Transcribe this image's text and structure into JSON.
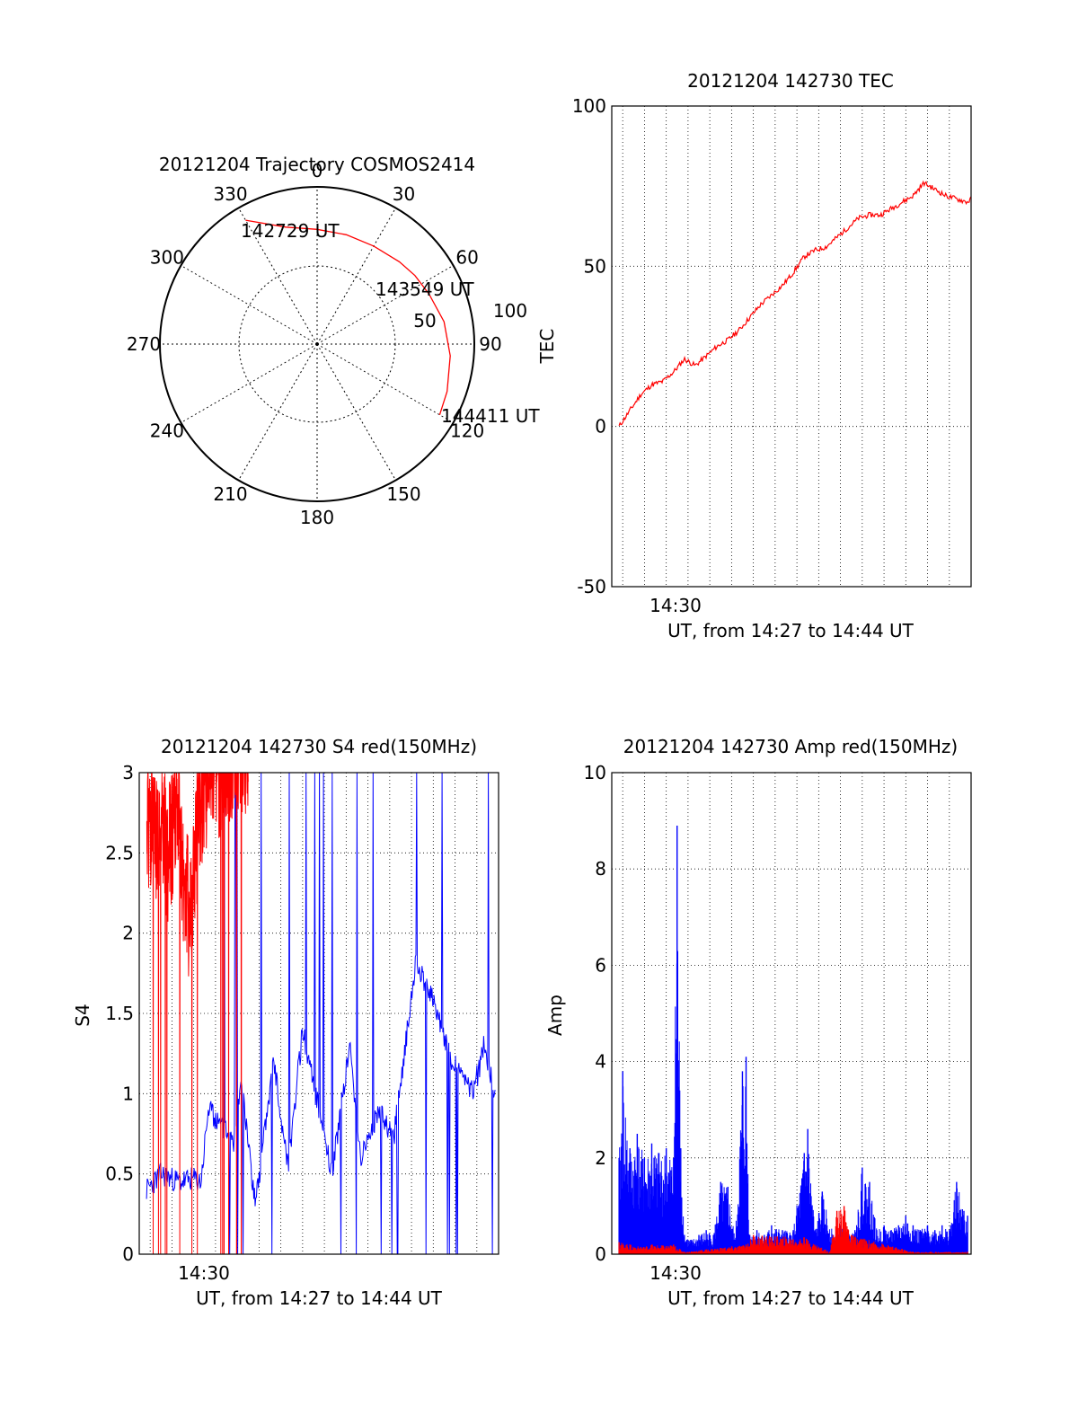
{
  "colors": {
    "red": "#ff0000",
    "blue": "#0000ff",
    "black": "#000000"
  },
  "chart_data": [
    {
      "id": "trajectory",
      "type": "polar",
      "title": "20121204 Trajectory COSMOS2414",
      "azimuth_labels": [
        "0",
        "30",
        "60",
        "90",
        "120",
        "150",
        "180",
        "210",
        "240",
        "270",
        "300",
        "330"
      ],
      "radial_labels": [
        "50",
        "100"
      ],
      "radial_range": [
        0,
        100
      ],
      "grid": true,
      "trajectory": [
        {
          "az": 330,
          "elev_dist": 91
        },
        {
          "az": 345,
          "elev_dist": 77
        },
        {
          "az": 0,
          "elev_dist": 73
        },
        {
          "az": 15,
          "elev_dist": 72
        },
        {
          "az": 30,
          "elev_dist": 72
        },
        {
          "az": 45,
          "elev_dist": 74
        },
        {
          "az": 55,
          "elev_dist": 76
        },
        {
          "az": 66,
          "elev_dist": 78
        },
        {
          "az": 80,
          "elev_dist": 82
        },
        {
          "az": 95,
          "elev_dist": 85
        },
        {
          "az": 110,
          "elev_dist": 88
        },
        {
          "az": 120,
          "elev_dist": 90
        }
      ],
      "annotations": [
        {
          "text": "142729 UT",
          "az": 330,
          "elev_dist": 91
        },
        {
          "text": "143549 UT",
          "az": 60,
          "elev_dist": 76
        },
        {
          "text": "144411 UT",
          "az": 120,
          "elev_dist": 90
        }
      ]
    },
    {
      "id": "tec",
      "type": "line",
      "title": "20121204 142730 TEC",
      "xlabel": "UT, from 14:27 to 14:44 UT",
      "ylabel": "TEC",
      "xlim": [
        14.4583,
        14.7333
      ],
      "ylim": [
        -50,
        100
      ],
      "yticks": [
        -50,
        0,
        50,
        100
      ],
      "xtick_label": "14:30",
      "grid": true,
      "series": [
        {
          "color": "red",
          "x": [
            14.4639,
            14.4722,
            14.4806,
            14.4889,
            14.4972,
            14.5056,
            14.5139,
            14.5222,
            14.5306,
            14.5389,
            14.5472,
            14.5556,
            14.5639,
            14.5722,
            14.5806,
            14.5889,
            14.5972,
            14.6056,
            14.6139,
            14.6222,
            14.6306,
            14.6389,
            14.6472,
            14.6556,
            14.6639,
            14.6722,
            14.6806,
            14.6889,
            14.6972,
            14.7056,
            14.7139,
            14.7222,
            14.7306,
            14.7333
          ],
          "values": [
            0,
            5,
            10,
            13,
            14,
            17,
            21,
            19,
            22,
            25,
            27,
            30,
            34,
            38,
            41,
            44,
            48,
            53,
            55,
            56,
            59,
            62,
            65,
            66,
            66,
            68,
            70,
            72,
            76,
            74,
            72,
            71,
            70,
            71
          ]
        }
      ]
    },
    {
      "id": "s4",
      "type": "line",
      "title": "20121204 142730 S4 red(150MHz)",
      "xlabel": "UT, from 14:27 to 14:44 UT",
      "ylabel": "S4",
      "xlim": [
        14.4583,
        14.7333
      ],
      "ylim": [
        0,
        3
      ],
      "yticks": [
        0,
        0.5,
        1,
        1.5,
        2,
        2.5,
        3
      ],
      "ytick_labels": [
        "0",
        "0.5",
        "1",
        "1.5",
        "2",
        "2.5",
        "3"
      ],
      "xtick_label": "14:30",
      "grid": true,
      "series": [
        {
          "color": "blue",
          "x": [
            14.4639,
            14.475,
            14.4889,
            14.5,
            14.5056,
            14.5111,
            14.5306,
            14.5361,
            14.5472,
            14.5611,
            14.5722,
            14.5833,
            14.6056,
            14.6194,
            14.6278,
            14.6417,
            14.6528,
            14.6694,
            14.6833,
            14.6972,
            14.7056,
            14.7139,
            14.7222,
            14.7306
          ],
          "values": [
            0.4,
            0.5,
            0.45,
            0.47,
            0.45,
            0.9,
            0.7,
            1.1,
            0.3,
            1.2,
            0.55,
            1.4,
            0.5,
            1.3,
            0.6,
            0.9,
            0.7,
            1.8,
            1.6,
            1.2,
            1.1,
            1.0,
            1.3,
            1.0
          ]
        },
        {
          "color": "red",
          "x": [
            14.4639,
            14.4694,
            14.475,
            14.4806,
            14.4861,
            14.4917,
            14.4972,
            14.5028,
            14.5083,
            14.5139,
            14.5194,
            14.525,
            14.5306,
            14.5361,
            14.5417
          ],
          "values": [
            2.6,
            2.4,
            2.5,
            2.3,
            2.6,
            2.2,
            1.9,
            2.5,
            2.7,
            3.0,
            2.8,
            3.0,
            2.9,
            3.0,
            3.0
          ]
        }
      ]
    },
    {
      "id": "amp",
      "type": "line",
      "title": "20121204 142730 Amp red(150MHz)",
      "xlabel": "UT, from 14:27 to 14:44 UT",
      "ylabel": "Amp",
      "xlim": [
        14.4583,
        14.7333
      ],
      "ylim": [
        0,
        10
      ],
      "yticks": [
        0,
        2,
        4,
        6,
        8,
        10
      ],
      "xtick_label": "14:30",
      "grid": true,
      "series": [
        {
          "color": "blue",
          "x": [
            14.4639,
            14.4667,
            14.4722,
            14.4778,
            14.4833,
            14.4889,
            14.4944,
            14.5,
            14.5056,
            14.5083,
            14.5111,
            14.5139,
            14.5194,
            14.525,
            14.5306,
            14.5361,
            14.5417,
            14.5472,
            14.5528,
            14.5583,
            14.5611,
            14.5639,
            14.5694,
            14.575,
            14.5806,
            14.5889,
            14.5972,
            14.6056,
            14.6083,
            14.6139,
            14.6194,
            14.6278,
            14.6333,
            14.6389,
            14.6444,
            14.65,
            14.6556,
            14.6611,
            14.6667,
            14.6722,
            14.6778,
            14.6833,
            14.6889,
            14.6944,
            14.7,
            14.7056,
            14.7111,
            14.7167,
            14.7222,
            14.7278,
            14.7306
          ],
          "values": [
            2.0,
            3.8,
            2.2,
            2.5,
            2.0,
            2.3,
            2.1,
            2.2,
            2.0,
            8.9,
            2.2,
            0.4,
            0.3,
            0.4,
            0.5,
            0.4,
            1.5,
            1.4,
            0.3,
            3.8,
            4.1,
            0.4,
            0.5,
            0.4,
            0.6,
            0.5,
            0.5,
            2.1,
            2.6,
            0.5,
            1.3,
            0.4,
            0.6,
            0.4,
            0.5,
            1.8,
            1.5,
            0.5,
            0.6,
            0.5,
            0.6,
            0.8,
            0.6,
            0.5,
            0.6,
            0.5,
            0.6,
            0.5,
            1.5,
            0.9,
            0.8
          ]
        },
        {
          "color": "red",
          "x": [
            14.4639,
            14.4722,
            14.4806,
            14.4889,
            14.4972,
            14.5056,
            14.5139,
            14.5611,
            14.5667,
            14.6056,
            14.625,
            14.6306,
            14.6361,
            14.6417,
            14.6889,
            14.7306
          ],
          "values": [
            0.25,
            0.2,
            0.15,
            0.2,
            0.18,
            0.2,
            0.05,
            0.2,
            0.4,
            0.35,
            0.05,
            0.9,
            1.0,
            0.4,
            0.05,
            0.05
          ]
        }
      ]
    }
  ]
}
